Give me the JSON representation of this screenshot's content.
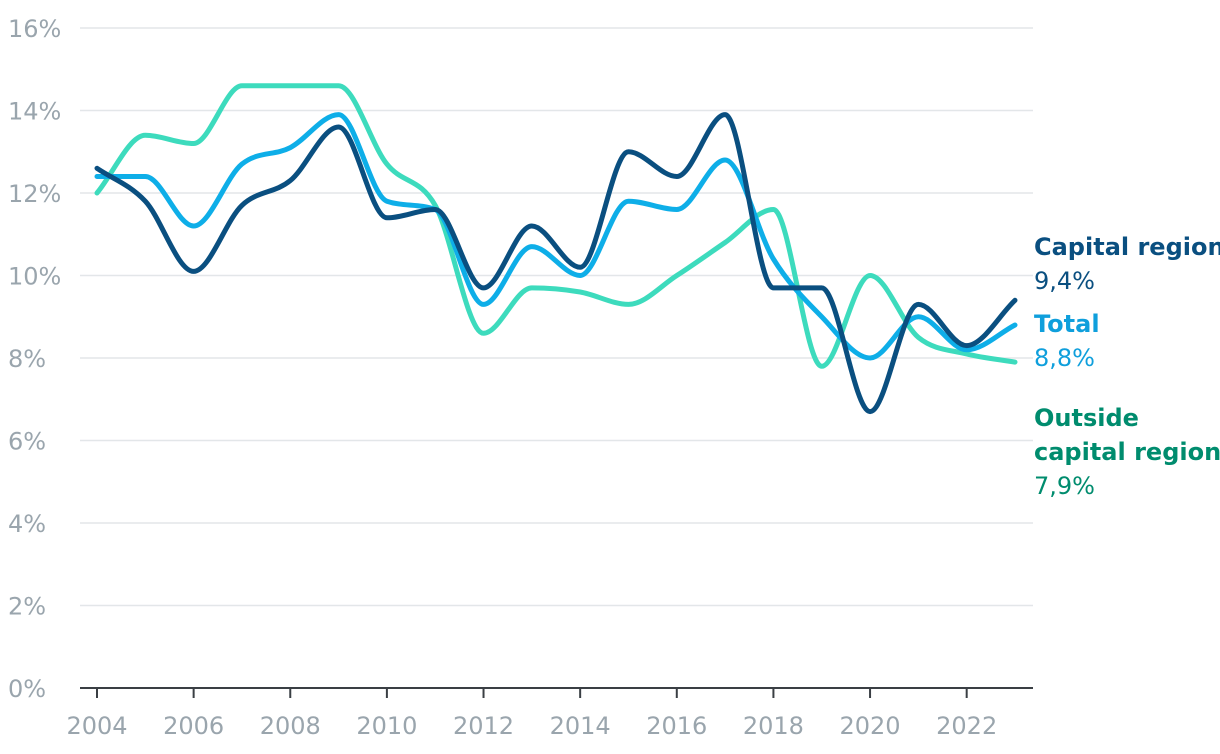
{
  "chart_data": {
    "type": "line",
    "title": "",
    "xlabel": "",
    "ylabel": "",
    "x": [
      2004,
      2005,
      2006,
      2007,
      2008,
      2009,
      2010,
      2011,
      2012,
      2013,
      2014,
      2015,
      2016,
      2017,
      2018,
      2019,
      2020,
      2021,
      2022,
      2023
    ],
    "xlim": [
      2004,
      2023
    ],
    "x_ticks": [
      2004,
      2006,
      2008,
      2010,
      2012,
      2014,
      2016,
      2018,
      2020,
      2022
    ],
    "x_tick_labels": [
      "2004",
      "2006",
      "2008",
      "2010",
      "2012",
      "2014",
      "2016",
      "2018",
      "2020",
      "2022"
    ],
    "ylim": [
      0,
      16
    ],
    "y_ticks": [
      0,
      2,
      4,
      6,
      8,
      10,
      12,
      14,
      16
    ],
    "y_tick_labels": [
      "0%",
      "2%",
      "4%",
      "6%",
      "8%",
      "10%",
      "12%",
      "14%",
      "16%"
    ],
    "grid": true,
    "legend": "end-of-line labels right",
    "series": [
      {
        "name": "Outside capital region",
        "label_lines": [
          "Outside",
          "capital region"
        ],
        "value_label": "7,9%",
        "color": "#3ddbbd",
        "label_color": "#008c6e",
        "values": [
          12.0,
          13.4,
          13.2,
          14.6,
          14.6,
          14.6,
          12.7,
          11.7,
          8.6,
          9.7,
          9.6,
          9.3,
          10.0,
          10.8,
          11.6,
          7.8,
          10.0,
          8.5,
          8.1,
          7.9
        ]
      },
      {
        "name": "Total",
        "label_lines": [
          "Total"
        ],
        "value_label": "8,8%",
        "color": "#0eaee8",
        "label_color": "#0f9fdc",
        "values": [
          12.4,
          12.4,
          11.2,
          12.7,
          13.1,
          13.9,
          11.8,
          11.6,
          9.3,
          10.7,
          10.0,
          11.8,
          11.6,
          12.8,
          10.4,
          9.0,
          8.0,
          9.0,
          8.2,
          8.8
        ]
      },
      {
        "name": "Capital region",
        "label_lines": [
          "Capital region"
        ],
        "value_label": "9,4%",
        "color": "#0a4f80",
        "label_color": "#0a4f80",
        "values": [
          12.6,
          11.8,
          10.1,
          11.7,
          12.3,
          13.6,
          11.4,
          11.6,
          9.7,
          11.2,
          10.2,
          13.0,
          12.4,
          13.9,
          9.7,
          9.7,
          6.7,
          9.3,
          8.3,
          9.4
        ]
      }
    ]
  }
}
